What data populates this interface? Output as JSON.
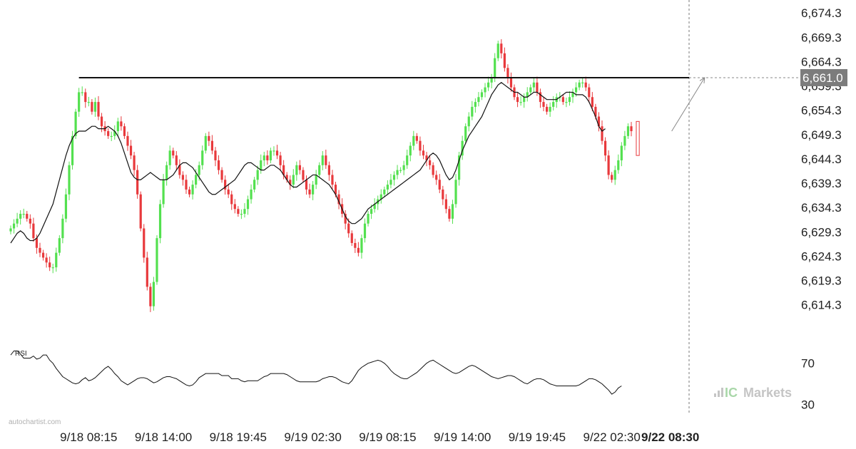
{
  "chart_data": {
    "type": "candlestick",
    "y_ticks": [
      "6,674.3",
      "6,669.3",
      "6,664.3",
      "6,659.3",
      "6,654.3",
      "6,649.3",
      "6,644.3",
      "6,639.3",
      "6,634.3",
      "6,629.3",
      "6,624.3",
      "6,619.3",
      "6,614.3"
    ],
    "ylim": [
      6610,
      6675.5
    ],
    "x_ticks": [
      {
        "label": "9/18 08:15",
        "index": 24,
        "bold": false
      },
      {
        "label": "9/18 14:00",
        "index": 47,
        "bold": false
      },
      {
        "label": "9/18 19:45",
        "index": 70,
        "bold": false
      },
      {
        "label": "9/19 02:30",
        "index": 93,
        "bold": false
      },
      {
        "label": "9/19 08:15",
        "index": 116,
        "bold": false
      },
      {
        "label": "9/19 14:00",
        "index": 139,
        "bold": false
      },
      {
        "label": "9/19 19:45",
        "index": 162,
        "bold": false
      },
      {
        "label": "9/22 02:30",
        "index": 185,
        "bold": false
      },
      {
        "label": "9/22 08:30",
        "index": 203,
        "bold": true
      }
    ],
    "resistance_level": 6661.0,
    "resistance_label": "6,661.0",
    "projection": {
      "from_index": 203,
      "from_price": 6650,
      "to_index": 214,
      "to_price": 6661.0
    },
    "moving_average": [
      6627.0,
      6628.0,
      6629.0,
      6629.5,
      6629.0,
      6628.0,
      6627.5,
      6627.5,
      6628.0,
      6629.0,
      6630.5,
      6632.0,
      6633.5,
      6635.0,
      6637.5,
      6640.0,
      6642.5,
      6645.0,
      6647.0,
      6648.5,
      6649.5,
      6650.0,
      6650.0,
      6650.0,
      6650.5,
      6651.0,
      6651.0,
      6650.5,
      6650.5,
      6650.5,
      6651.0,
      6650.5,
      6650.0,
      6649.0,
      6647.5,
      6645.5,
      6643.5,
      6641.5,
      6640.5,
      6640.0,
      6640.0,
      6640.5,
      6641.0,
      6641.5,
      6641.0,
      6640.5,
      6640.0,
      6640.0,
      6640.0,
      6640.5,
      6641.0,
      6642.0,
      6643.0,
      6643.5,
      6643.5,
      6643.0,
      6642.5,
      6641.5,
      6640.5,
      6639.5,
      6638.5,
      6637.5,
      6637.0,
      6637.0,
      6637.5,
      6638.0,
      6638.5,
      6639.0,
      6639.5,
      6640.0,
      6641.0,
      6642.0,
      6643.0,
      6643.5,
      6643.5,
      6643.0,
      6642.5,
      6642.0,
      6642.0,
      6642.5,
      6643.0,
      6643.0,
      6642.5,
      6642.0,
      6641.0,
      6640.0,
      6639.0,
      6638.5,
      6638.5,
      6639.0,
      6639.5,
      6640.0,
      6640.5,
      6641.0,
      6641.0,
      6640.5,
      6640.0,
      6639.5,
      6639.0,
      6638.0,
      6637.0,
      6635.5,
      6634.0,
      6632.5,
      6631.5,
      6631.0,
      6631.0,
      6631.5,
      6632.0,
      6633.0,
      6634.0,
      6634.5,
      6635.0,
      6635.5,
      6636.0,
      6636.5,
      6637.0,
      6637.5,
      6638.0,
      6638.5,
      6639.0,
      6639.5,
      6640.0,
      6640.5,
      6641.0,
      6641.5,
      6642.0,
      6643.0,
      6644.0,
      6645.0,
      6645.5,
      6645.0,
      6644.0,
      6642.5,
      6641.0,
      6640.0,
      6640.5,
      6642.0,
      6644.0,
      6646.0,
      6647.5,
      6649.0,
      6650.0,
      6651.0,
      6652.0,
      6653.0,
      6654.5,
      6656.0,
      6657.5,
      6658.5,
      6659.5,
      6660.0,
      6659.5,
      6659.0,
      6658.5,
      6658.0,
      6658.0,
      6657.5,
      6657.0,
      6657.0,
      6657.5,
      6658.0,
      6658.0,
      6657.5,
      6657.0,
      6656.5,
      6656.5,
      6656.5,
      6656.5,
      6657.0,
      6657.5,
      6658.0,
      6658.0,
      6658.0,
      6657.5,
      6657.5,
      6657.5,
      6657.0,
      6656.0,
      6654.5,
      6653.0,
      6651.0,
      6650.0,
      6650.5
    ],
    "rsi_ticks": [
      "70",
      "30"
    ],
    "rsi_label": "RSI",
    "rsi_values": [
      78,
      82,
      82,
      79,
      75,
      75,
      75,
      77,
      74,
      75,
      78,
      78,
      73,
      70,
      65,
      61,
      57,
      55,
      53,
      51,
      50,
      51,
      54,
      56,
      53,
      54,
      56,
      59,
      62,
      65,
      67,
      64,
      60,
      57,
      53,
      51,
      49,
      51,
      53,
      55,
      56,
      56,
      55,
      53,
      51,
      52,
      54,
      56,
      57,
      57,
      56,
      55,
      53,
      51,
      49,
      48,
      49,
      52,
      56,
      58,
      60,
      60,
      60,
      60,
      60,
      58,
      58,
      58,
      55,
      55,
      55,
      53,
      52,
      53,
      53,
      53,
      53,
      55,
      57,
      58,
      60,
      60,
      60,
      60,
      60,
      59,
      57,
      55,
      53,
      52,
      52,
      52,
      52,
      52,
      52,
      53,
      55,
      56,
      57,
      57,
      56,
      54,
      52,
      51,
      50,
      53,
      58,
      63,
      66,
      68,
      70,
      71,
      72,
      73,
      72,
      70,
      67,
      63,
      60,
      58,
      56,
      55,
      55,
      57,
      59,
      61,
      64,
      67,
      70,
      72,
      73,
      71,
      69,
      67,
      65,
      63,
      61,
      60,
      61,
      63,
      65,
      67,
      68,
      67,
      65,
      63,
      61,
      59,
      57,
      56,
      55,
      56,
      57,
      58,
      58,
      57,
      55,
      53,
      51,
      50,
      52,
      54,
      55,
      55,
      54,
      52,
      50,
      49,
      48,
      48,
      48,
      48,
      48,
      48,
      48,
      49,
      51,
      53,
      55,
      55,
      54,
      52,
      50,
      47,
      44,
      40,
      42,
      46,
      48
    ],
    "candle_segments": [
      {
        "start": 0,
        "prices": [
          6630,
          6631,
          6632,
          6633,
          6633,
          6632,
          6631,
          6628,
          6626,
          6625,
          6624,
          6623,
          6622,
          6622,
          6625,
          6628,
          6632,
          6637,
          6643,
          6649,
          6654,
          6658,
          6658,
          6656,
          6656,
          6654,
          6656,
          6653,
          6651,
          6650,
          6649,
          6649,
          6650,
          6652,
          6651,
          6649,
          6647,
          6645,
          6642,
          6637,
          6630,
          6624,
          6618,
          6614,
          6619,
          6628,
          6635,
          6640,
          6643,
          6646,
          6645,
          6643,
          6641,
          6640,
          6638,
          6637,
          6639,
          6641,
          6643,
          6646,
          6649,
          6648,
          6646,
          6644,
          6642,
          6640,
          6638,
          6637,
          6635,
          6634,
          6633,
          6633,
          6634,
          6636,
          6638,
          6640,
          6642,
          6644,
          6645,
          6644,
          6646,
          6646,
          6645,
          6643,
          6641,
          6640,
          6639,
          6641,
          6643,
          6642,
          6640,
          6638,
          6637,
          6639,
          6641,
          6643,
          6645,
          6643,
          6641,
          6639,
          6637,
          6635,
          6633,
          6631,
          6629,
          6627,
          6626,
          6625,
          6628,
          6631,
          6633,
          6634,
          6635,
          6636,
          6637,
          6638,
          6639,
          6640,
          6641,
          6642,
          6642,
          6643,
          6645,
          6647,
          6649,
          6648,
          6646,
          6645,
          6644,
          6643,
          6641,
          6640,
          6638,
          6636,
          6634,
          6632,
          6635,
          6640,
          6645,
          6648,
          6651,
          6653,
          6655,
          6656,
          6657,
          6658,
          6659,
          6660,
          6661,
          6665,
          6668,
          6666,
          6663,
          6661,
          6659,
          6657,
          6656,
          6656,
          6657,
          6658,
          6659,
          6660,
          6658,
          6656,
          6655,
          6654,
          6655,
          6656,
          6657,
          6657,
          6656,
          6656,
          6657,
          6658,
          6659,
          6660,
          6660,
          6659,
          6657,
          6655,
          6653,
          6651,
          6648,
          6645,
          6641,
          6640,
          6642,
          6644,
          6647,
          6649,
          6651,
          6650
        ]
      }
    ]
  },
  "branding": {
    "watermark": "autochartist.com",
    "logo_ic": "IC",
    "logo_markets": "Markets"
  }
}
